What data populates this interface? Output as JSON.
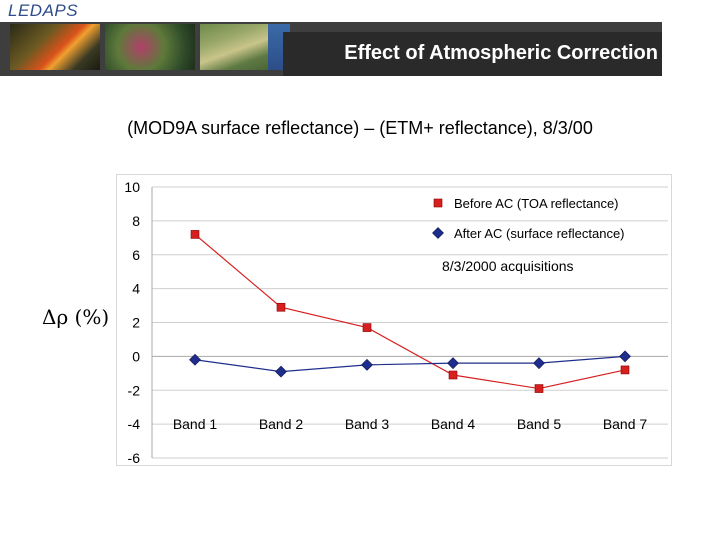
{
  "header": {
    "brand": "LEDAPS",
    "title": "Effect of Atmospheric Correction",
    "thumbnails": [
      "fire-photo",
      "forest-image",
      "us-map-image"
    ]
  },
  "subtitle": "(MOD9A surface reflectance) – (ETM+ reflectance), 8/3/00",
  "y_unit_label": "Δρ (%)",
  "chart_data": {
    "type": "line",
    "title": "",
    "annotation": "8/3/2000 acquisitions",
    "categories": [
      "Band 1",
      "Band 2",
      "Band 3",
      "Band 4",
      "Band 5",
      "Band 7"
    ],
    "ylabel": "Δρ (%)",
    "xlabel": "",
    "ylim": [
      -6,
      10
    ],
    "yticks": [
      10,
      8,
      6,
      4,
      2,
      0,
      -2,
      -4,
      -6
    ],
    "grid": "horizontal",
    "legend_position": "top-right",
    "series": [
      {
        "name": "Before AC (TOA reflectance)",
        "color": "#d62020",
        "marker": "square",
        "values": [
          7.2,
          2.9,
          1.7,
          -1.1,
          -1.9,
          -0.8
        ]
      },
      {
        "name": "After AC (surface reflectance)",
        "color": "#1f2e8c",
        "marker": "diamond",
        "values": [
          -0.2,
          -0.9,
          -0.5,
          -0.4,
          -0.4,
          0.0
        ]
      }
    ]
  }
}
